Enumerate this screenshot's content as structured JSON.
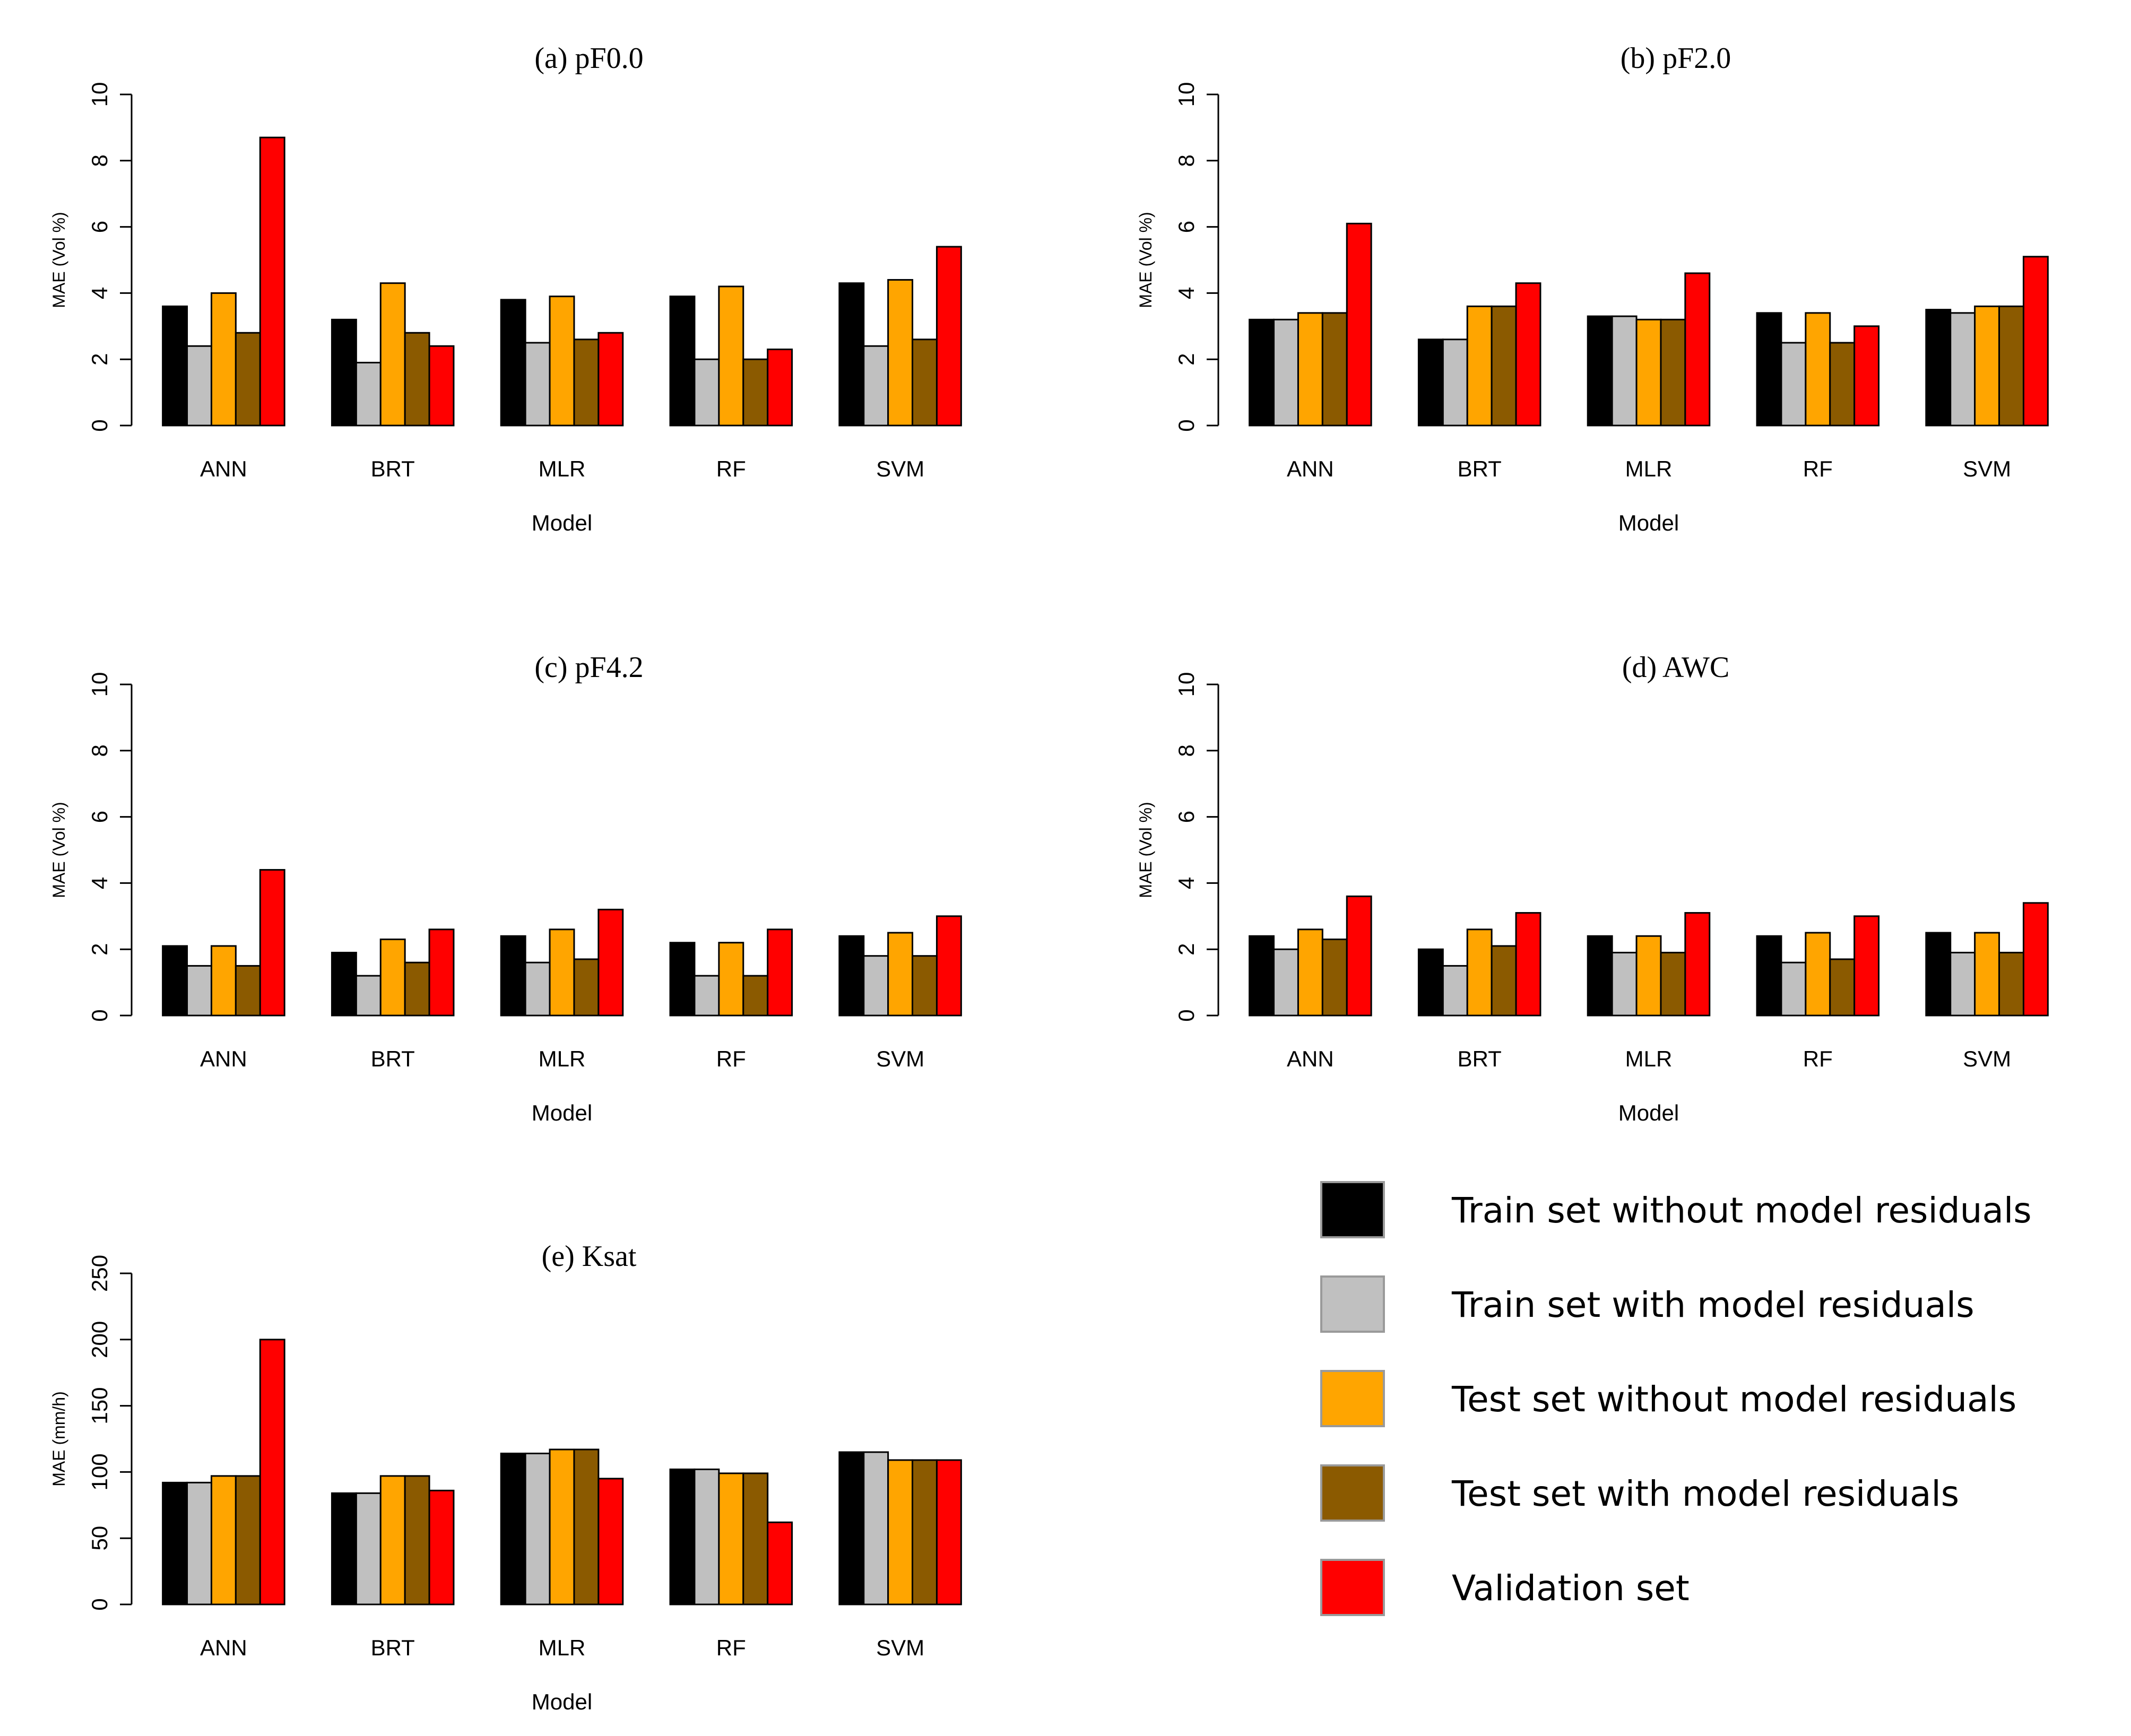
{
  "chart_data": [
    {
      "type": "bar",
      "title": "(a)  pF0.0",
      "xlabel": "Model",
      "ylabel": "MAE (Vol %)",
      "ylim": [
        0,
        10
      ],
      "yticks": [
        "0",
        "2",
        "4",
        "6",
        "8",
        "10"
      ],
      "categories": [
        "ANN",
        "BRT",
        "MLR",
        "RF",
        "SVM"
      ],
      "series": [
        {
          "name": "Train set without model residuals",
          "values": [
            3.6,
            3.2,
            3.8,
            3.9,
            4.3
          ]
        },
        {
          "name": "Train set with model residuals",
          "values": [
            2.4,
            1.9,
            2.5,
            2.0,
            2.4
          ]
        },
        {
          "name": "Test set without model residuals",
          "values": [
            4.0,
            4.3,
            3.9,
            4.2,
            4.4
          ]
        },
        {
          "name": "Test set with model residuals",
          "values": [
            2.8,
            2.8,
            2.6,
            2.0,
            2.6
          ]
        },
        {
          "name": "Validation set",
          "values": [
            8.7,
            2.4,
            2.8,
            2.3,
            5.4
          ]
        }
      ]
    },
    {
      "type": "bar",
      "title": "(b)  pF2.0",
      "xlabel": "Model",
      "ylabel": "MAE (Vol %)",
      "ylim": [
        0,
        10
      ],
      "yticks": [
        "0",
        "2",
        "4",
        "6",
        "8",
        "10"
      ],
      "categories": [
        "ANN",
        "BRT",
        "MLR",
        "RF",
        "SVM"
      ],
      "series": [
        {
          "name": "Train set without model residuals",
          "values": [
            3.2,
            2.6,
            3.3,
            3.4,
            3.5
          ]
        },
        {
          "name": "Train set with model residuals",
          "values": [
            3.2,
            2.6,
            3.3,
            2.5,
            3.4
          ]
        },
        {
          "name": "Test set without model residuals",
          "values": [
            3.4,
            3.6,
            3.2,
            3.4,
            3.6
          ]
        },
        {
          "name": "Test set with model residuals",
          "values": [
            3.4,
            3.6,
            3.2,
            2.5,
            3.6
          ]
        },
        {
          "name": "Validation set",
          "values": [
            6.1,
            4.3,
            4.6,
            3.0,
            5.1
          ]
        }
      ]
    },
    {
      "type": "bar",
      "title": "(c)  pF4.2",
      "xlabel": "Model",
      "ylabel": "MAE (Vol %)",
      "ylim": [
        0,
        10
      ],
      "yticks": [
        "0",
        "2",
        "4",
        "6",
        "8",
        "10"
      ],
      "categories": [
        "ANN",
        "BRT",
        "MLR",
        "RF",
        "SVM"
      ],
      "series": [
        {
          "name": "Train set without model residuals",
          "values": [
            2.1,
            1.9,
            2.4,
            2.2,
            2.4
          ]
        },
        {
          "name": "Train set with model residuals",
          "values": [
            1.5,
            1.2,
            1.6,
            1.2,
            1.8
          ]
        },
        {
          "name": "Test set without model residuals",
          "values": [
            2.1,
            2.3,
            2.6,
            2.2,
            2.5
          ]
        },
        {
          "name": "Test set with model residuals",
          "values": [
            1.5,
            1.6,
            1.7,
            1.2,
            1.8
          ]
        },
        {
          "name": "Validation set",
          "values": [
            4.4,
            2.6,
            3.2,
            2.6,
            3.0
          ]
        }
      ]
    },
    {
      "type": "bar",
      "title": "(d)  AWC",
      "xlabel": "Model",
      "ylabel": "MAE (Vol %)",
      "ylim": [
        0,
        10
      ],
      "yticks": [
        "0",
        "2",
        "4",
        "6",
        "8",
        "10"
      ],
      "categories": [
        "ANN",
        "BRT",
        "MLR",
        "RF",
        "SVM"
      ],
      "series": [
        {
          "name": "Train set without model residuals",
          "values": [
            2.4,
            2.0,
            2.4,
            2.4,
            2.5
          ]
        },
        {
          "name": "Train set with model residuals",
          "values": [
            2.0,
            1.5,
            1.9,
            1.6,
            1.9
          ]
        },
        {
          "name": "Test set without model residuals",
          "values": [
            2.6,
            2.6,
            2.4,
            2.5,
            2.5
          ]
        },
        {
          "name": "Test set with model residuals",
          "values": [
            2.3,
            2.1,
            1.9,
            1.7,
            1.9
          ]
        },
        {
          "name": "Validation set",
          "values": [
            3.6,
            3.1,
            3.1,
            3.0,
            3.4
          ]
        }
      ]
    },
    {
      "type": "bar",
      "title": "(e)  Ksat",
      "xlabel": "Model",
      "ylabel": "MAE (mm/h)",
      "ylim": [
        0,
        250
      ],
      "yticks": [
        "0",
        "50",
        "100",
        "150",
        "200",
        "250"
      ],
      "categories": [
        "ANN",
        "BRT",
        "MLR",
        "RF",
        "SVM"
      ],
      "series": [
        {
          "name": "Train set without model residuals",
          "values": [
            92,
            84,
            114,
            102,
            115
          ]
        },
        {
          "name": "Train set with model residuals",
          "values": [
            92,
            84,
            114,
            102,
            115
          ]
        },
        {
          "name": "Test set without model residuals",
          "values": [
            97,
            97,
            117,
            99,
            109
          ]
        },
        {
          "name": "Test set with model residuals",
          "values": [
            97,
            97,
            117,
            99,
            109
          ]
        },
        {
          "name": "Validation set",
          "values": [
            200,
            86,
            95,
            62,
            109
          ]
        }
      ]
    }
  ],
  "legend": {
    "placement": "bottom-right",
    "entries": [
      {
        "label": "Train set without model residuals",
        "color": "#000000"
      },
      {
        "label": "Train set with model residuals",
        "color": "#c0c0c0"
      },
      {
        "label": "Test set without model residuals",
        "color": "#ffa500"
      },
      {
        "label": "Test set with model residuals",
        "color": "#8b5a00"
      },
      {
        "label": "Validation set",
        "color": "#ff0000"
      }
    ]
  },
  "series_colors": [
    "#000000",
    "#c0c0c0",
    "#ffa500",
    "#8b5a00",
    "#ff0000"
  ]
}
